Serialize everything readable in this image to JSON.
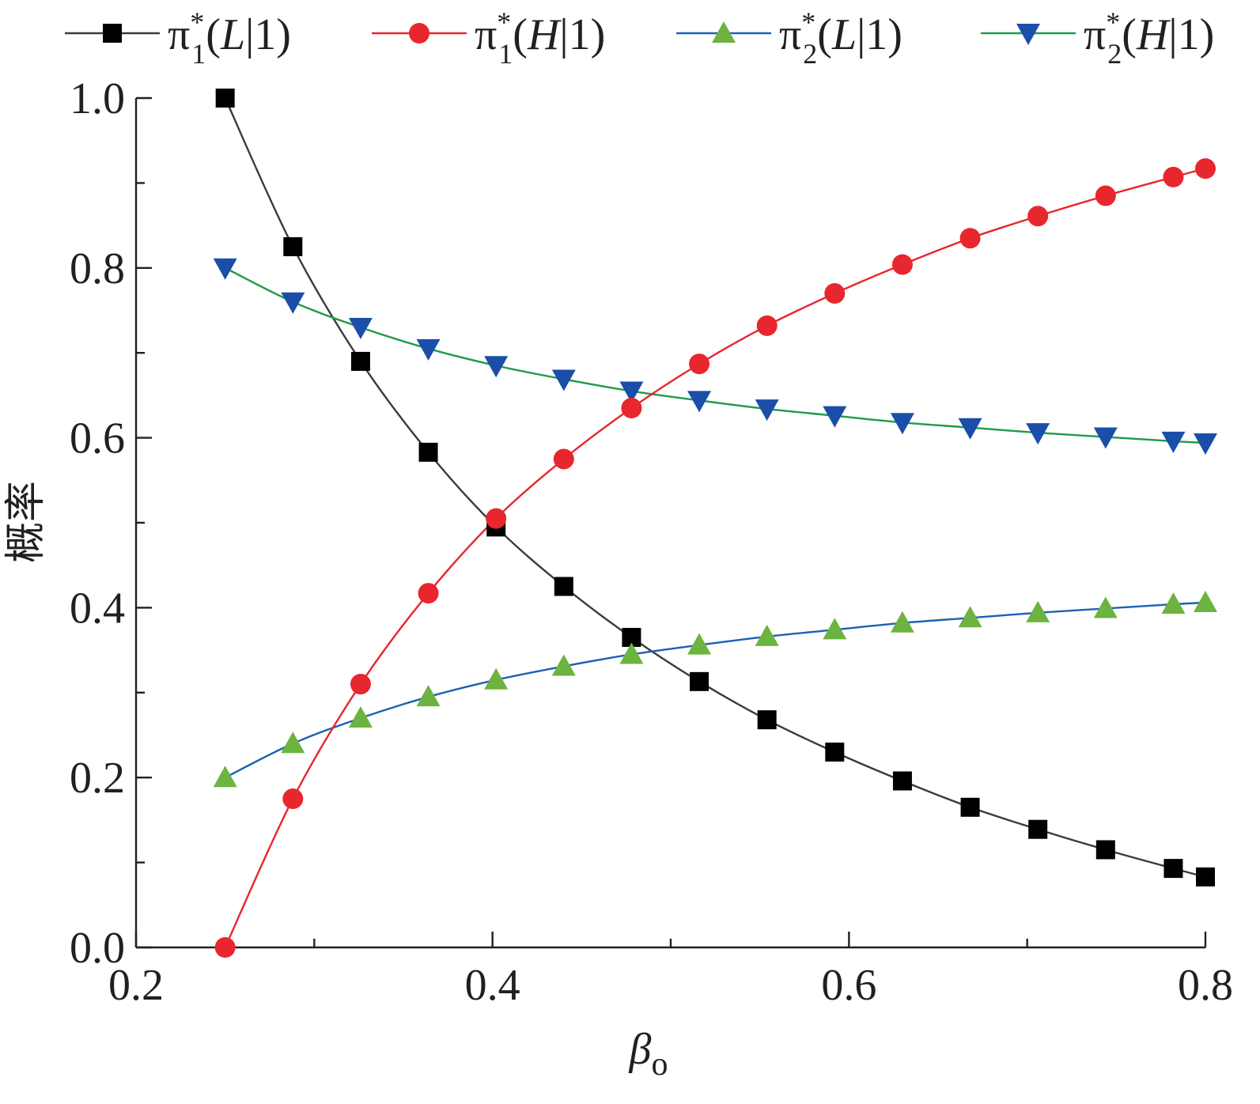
{
  "chart_data": {
    "type": "line",
    "title": "",
    "xlabel": {
      "main": "β",
      "sub": "o"
    },
    "ylabel": "概率",
    "xlim": [
      0.2,
      0.8
    ],
    "ylim": [
      0.0,
      1.0
    ],
    "x_major_ticks": [
      0.2,
      0.4,
      0.6,
      0.8
    ],
    "x_tick_labels": [
      "0.2",
      "0.4",
      "0.6",
      "0.8"
    ],
    "x_minor_ticks": [
      0.3,
      0.5,
      0.7
    ],
    "y_major_ticks": [
      0.0,
      0.2,
      0.4,
      0.6,
      0.8,
      1.0
    ],
    "y_tick_labels": [
      "0.0",
      "0.2",
      "0.4",
      "0.6",
      "0.8",
      "1.0"
    ],
    "y_minor_ticks": [
      0.1,
      0.3,
      0.5,
      0.7,
      0.9
    ],
    "grid": false,
    "legend_position": "top",
    "x": [
      0.25,
      0.288,
      0.326,
      0.364,
      0.402,
      0.44,
      0.478,
      0.516,
      0.554,
      0.592,
      0.63,
      0.668,
      0.706,
      0.744,
      0.782,
      0.8
    ],
    "series": [
      {
        "name": "π1*(L|1)",
        "legend": {
          "base": "π",
          "sub": "1",
          "sup": "*",
          "arg": "(L|1)",
          "italic": "L"
        },
        "marker": "square",
        "line_color": "#3b3b3b",
        "marker_color": "#000000",
        "values": [
          1.0,
          0.825,
          0.69,
          0.583,
          0.495,
          0.425,
          0.365,
          0.313,
          0.268,
          0.23,
          0.196,
          0.165,
          0.139,
          0.115,
          0.093,
          0.083
        ]
      },
      {
        "name": "π1*(H|1)",
        "legend": {
          "base": "π",
          "sub": "1",
          "sup": "*",
          "arg": "(H|1)",
          "italic": "H"
        },
        "marker": "circle",
        "line_color": "#e8262d",
        "marker_color": "#e8262d",
        "values": [
          0.0,
          0.175,
          0.31,
          0.417,
          0.505,
          0.575,
          0.635,
          0.687,
          0.732,
          0.77,
          0.804,
          0.835,
          0.861,
          0.885,
          0.907,
          0.917
        ]
      },
      {
        "name": "π2*(L|1)",
        "legend": {
          "base": "π",
          "sub": "2",
          "sup": "*",
          "arg": "(L|1)",
          "italic": "L"
        },
        "marker": "triangle-up",
        "line_color": "#1b62b4",
        "marker_color": "#6db33f",
        "values": [
          0.2,
          0.24,
          0.27,
          0.295,
          0.315,
          0.331,
          0.345,
          0.356,
          0.366,
          0.374,
          0.382,
          0.388,
          0.394,
          0.399,
          0.404,
          0.406
        ]
      },
      {
        "name": "π2*(H|1)",
        "legend": {
          "base": "π",
          "sub": "2",
          "sup": "*",
          "arg": "(H|1)",
          "italic": "H"
        },
        "marker": "triangle-down",
        "line_color": "#1f9a4a",
        "marker_color": "#1b4ea8",
        "values": [
          0.8,
          0.76,
          0.73,
          0.705,
          0.685,
          0.669,
          0.655,
          0.644,
          0.634,
          0.626,
          0.618,
          0.612,
          0.606,
          0.601,
          0.596,
          0.594
        ]
      }
    ]
  }
}
